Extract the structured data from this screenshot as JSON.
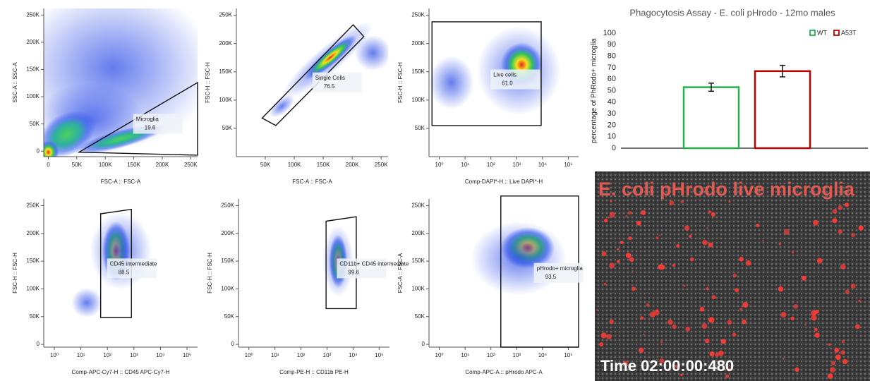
{
  "chart_data": [
    {
      "type": "density",
      "x_label": "FSC-A :: FSC-A",
      "y_label": "SSC-A :: SSC-A",
      "xscale": "linear",
      "yscale": "linear",
      "xlim": [
        -8000,
        262000
      ],
      "ylim": [
        -10000,
        262000
      ],
      "xticks": [
        0,
        {
          "value": 50000,
          "label": "50K"
        },
        {
          "value": 100000,
          "label": "100K"
        },
        {
          "value": 150000,
          "label": "150K"
        },
        {
          "value": 200000,
          "label": "200K"
        },
        {
          "value": 250000,
          "label": "250K"
        }
      ],
      "yticks": [
        0,
        {
          "value": 50000,
          "label": "50K"
        },
        {
          "value": 100000,
          "label": "100K"
        },
        {
          "value": 150000,
          "label": "150K"
        },
        {
          "value": 200000,
          "label": "200K"
        },
        {
          "value": 250000,
          "label": "250K"
        }
      ],
      "gate": {
        "name": "Microglia",
        "value": 19.6
      }
    },
    {
      "type": "density",
      "x_label": "FSC-A :: FSC-A",
      "y_label": "FSC-H :: FSC-H",
      "xscale": "linear",
      "yscale": "linear",
      "xlim": [
        0,
        262000
      ],
      "ylim": [
        0,
        262000
      ],
      "xticks": [
        {
          "value": 50000,
          "label": "50K"
        },
        {
          "value": 100000,
          "label": "100K"
        },
        {
          "value": 150000,
          "label": "150K"
        },
        {
          "value": 200000,
          "label": "200K"
        },
        {
          "value": 250000,
          "label": "250K"
        }
      ],
      "yticks": [
        {
          "value": 50000,
          "label": "50K"
        },
        {
          "value": 100000,
          "label": "100K"
        },
        {
          "value": 150000,
          "label": "150K"
        },
        {
          "value": 200000,
          "label": "200K"
        },
        {
          "value": 250000,
          "label": "250K"
        }
      ],
      "gate": {
        "name": "Single Cells",
        "value": 76.5
      }
    },
    {
      "type": "density",
      "x_label": "Comp-DAPI*-H :: Live DAPI*-H",
      "y_label": "FSC-H :: FSC-H",
      "xscale": "log",
      "yscale": "linear",
      "xlim": [
        0.4,
        250000
      ],
      "ylim": [
        0,
        262000
      ],
      "xticks": [
        {
          "value": 1,
          "label": "10⁰"
        },
        {
          "value": 10,
          "label": "10¹"
        },
        {
          "value": 100,
          "label": "10²"
        },
        {
          "value": 1000,
          "label": "10³"
        },
        {
          "value": 10000,
          "label": "10⁴"
        },
        {
          "value": 100000,
          "label": "10⁵"
        }
      ],
      "yticks": [
        {
          "value": 50000,
          "label": "50K"
        },
        {
          "value": 100000,
          "label": "100K"
        },
        {
          "value": 150000,
          "label": "150K"
        },
        {
          "value": 200000,
          "label": "200K"
        },
        {
          "value": 250000,
          "label": "250K"
        }
      ],
      "gate": {
        "name": "Live cells",
        "value": {
          "value": 61,
          "label": "61.0"
        }
      }
    },
    {
      "type": "density",
      "x_label": "Comp-APC-Cy7-H :: CD45 APC-Cy7-H",
      "y_label": "FSC-H :: FSC-H",
      "xscale": "log",
      "yscale": "linear",
      "xlim": [
        0.4,
        250000
      ],
      "ylim": [
        -5000,
        262000
      ],
      "xticks": [
        {
          "value": 1,
          "label": "10⁰"
        },
        {
          "value": 10,
          "label": "10¹"
        },
        {
          "value": 100,
          "label": "10²"
        },
        {
          "value": 1000,
          "label": "10³"
        },
        {
          "value": 10000,
          "label": "10⁴"
        },
        {
          "value": 100000,
          "label": "10⁵"
        }
      ],
      "yticks": [
        0,
        {
          "value": 50000,
          "label": "50K"
        },
        {
          "value": 100000,
          "label": "100K"
        },
        {
          "value": 150000,
          "label": "150K"
        },
        {
          "value": 200000,
          "label": "200K"
        },
        {
          "value": 250000,
          "label": "250K"
        }
      ],
      "gate": {
        "name": "CD45 intermediate",
        "value": 88.5
      }
    },
    {
      "type": "density",
      "x_label": "Comp-PE-H :: CD11b PE-H",
      "y_label": "FSC-H :: FSC-H",
      "xscale": "log",
      "yscale": "linear",
      "xlim": [
        0.4,
        250000
      ],
      "ylim": [
        -5000,
        262000
      ],
      "xticks": [
        {
          "value": 1,
          "label": "10⁰"
        },
        {
          "value": 10,
          "label": "10¹"
        },
        {
          "value": 100,
          "label": "10²"
        },
        {
          "value": 1000,
          "label": "10³"
        },
        {
          "value": 10000,
          "label": "10⁴"
        },
        {
          "value": 100000,
          "label": "10⁵"
        }
      ],
      "yticks": [
        0,
        {
          "value": 50000,
          "label": "50K"
        },
        {
          "value": 100000,
          "label": "100K"
        },
        {
          "value": 150000,
          "label": "150K"
        },
        {
          "value": 200000,
          "label": "200K"
        },
        {
          "value": 250000,
          "label": "250K"
        }
      ],
      "gate": {
        "name": "CD11b+ CD45 intermediate",
        "value": 99.6
      }
    },
    {
      "type": "density",
      "x_label": "Comp-APC-A :: pHrodo APC-A",
      "y_label": "FSC-A :: FSC-A",
      "xscale": "log",
      "yscale": "linear",
      "xlim": [
        0.4,
        250000
      ],
      "ylim": [
        -5000,
        262000
      ],
      "xticks": [
        {
          "value": 1,
          "label": "10⁰"
        },
        {
          "value": 10,
          "label": "10¹"
        },
        {
          "value": 100,
          "label": "10²"
        },
        {
          "value": 1000,
          "label": "10³"
        },
        {
          "value": 10000,
          "label": "10⁴"
        },
        {
          "value": 100000,
          "label": "10⁵"
        }
      ],
      "yticks": [
        0,
        {
          "value": 50000,
          "label": "50K"
        },
        {
          "value": 100000,
          "label": "100K"
        },
        {
          "value": 150000,
          "label": "150K"
        },
        {
          "value": 200000,
          "label": "200K"
        },
        {
          "value": 250000,
          "label": "250K"
        }
      ],
      "gate": {
        "name": "pHrodo+ microglia",
        "value": 93.5
      }
    },
    {
      "type": "bar",
      "title": "Phagocytosis Assay - E. coli pHrodo - 12mo males",
      "y_label": "percentage of PhRodo+ microglia",
      "categories": [
        null
      ],
      "ylim": [
        0,
        100
      ],
      "yticks": [
        0,
        10,
        20,
        30,
        40,
        50,
        60,
        70,
        80,
        90,
        100
      ],
      "legend": "top-right",
      "series": [
        {
          "name": "WT",
          "color": "#22b14c",
          "values": [
            53
          ],
          "errors": [
            3.5
          ]
        },
        {
          "name": "A53T",
          "color": "#c00000",
          "values": [
            67
          ],
          "errors": [
            5
          ]
        }
      ]
    }
  ],
  "image": {
    "caption": "E. coli pHrodo live microglia",
    "timestamp": "Time 02:00:00:480"
  }
}
